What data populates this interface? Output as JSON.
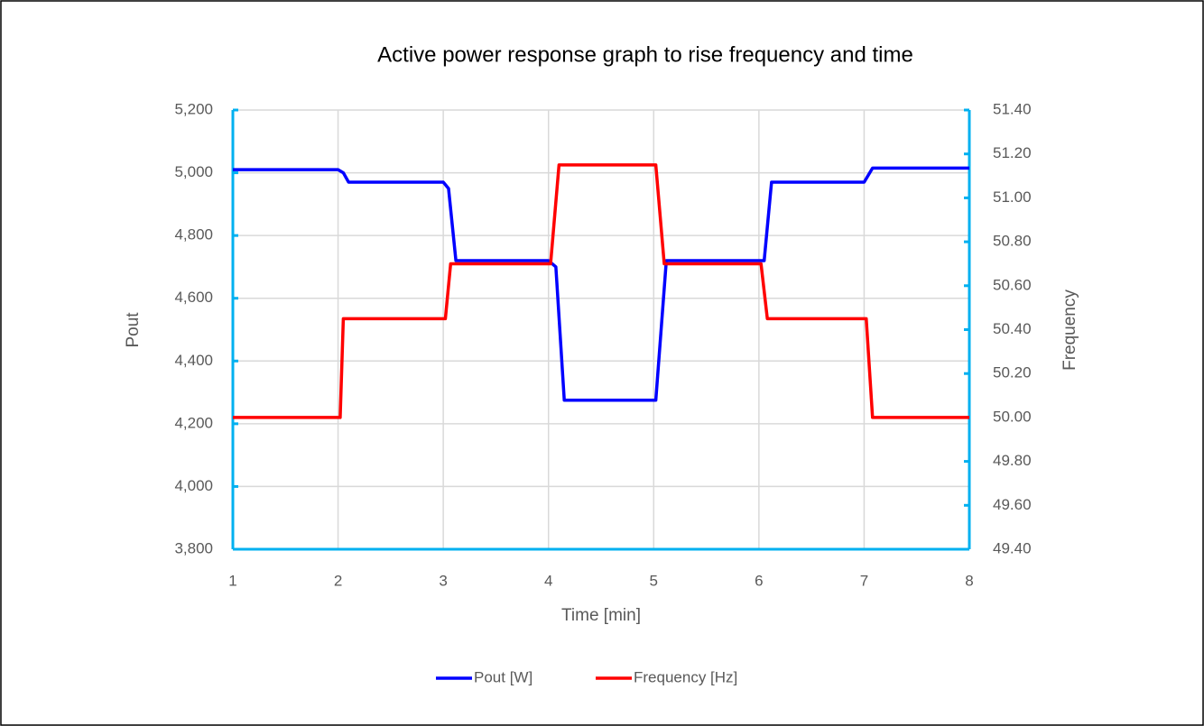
{
  "chart_data": {
    "type": "line",
    "title": "Active power response graph to rise frequency and time",
    "x_label": "Time [min]",
    "y_label": "Pout",
    "y2_label": "Frequency",
    "xlim": [
      1,
      8
    ],
    "xticks": [
      1,
      2,
      3,
      4,
      5,
      6,
      7,
      8
    ],
    "ylim": [
      3800,
      5200
    ],
    "yticks": [
      {
        "value": 3800,
        "label": "3,800"
      },
      {
        "value": 4000,
        "label": "4,000"
      },
      {
        "value": 4200,
        "label": "4,200"
      },
      {
        "value": 4400,
        "label": "4,400"
      },
      {
        "value": 4600,
        "label": "4,600"
      },
      {
        "value": 4800,
        "label": "4,800"
      },
      {
        "value": 5000,
        "label": "5,000"
      },
      {
        "value": 5200,
        "label": "5,200"
      }
    ],
    "y2lim": [
      49.4,
      51.4
    ],
    "y2ticks": [
      {
        "value": 49.4,
        "label": "49.40"
      },
      {
        "value": 49.6,
        "label": "49.60"
      },
      {
        "value": 49.8,
        "label": "49.80"
      },
      {
        "value": 50.0,
        "label": "50.00"
      },
      {
        "value": 50.2,
        "label": "50.20"
      },
      {
        "value": 50.4,
        "label": "50.40"
      },
      {
        "value": 50.6,
        "label": "50.60"
      },
      {
        "value": 50.8,
        "label": "50.80"
      },
      {
        "value": 51.0,
        "label": "51.00"
      },
      {
        "value": 51.2,
        "label": "51.20"
      },
      {
        "value": 51.4,
        "label": "51.40"
      }
    ],
    "grid": true,
    "axis_color": "#00b0f0",
    "legend": "bottom",
    "series": [
      {
        "name": "Pout [W]",
        "color": "#0000ff",
        "x": [
          1,
          2,
          2.05,
          2.1,
          3,
          3.05,
          3.12,
          4,
          4.07,
          4.15,
          5.02,
          5.12,
          6.05,
          6.12,
          7,
          7.08,
          8
        ],
        "values": [
          5010,
          5010,
          5000,
          4970,
          4970,
          4950,
          4720,
          4720,
          4700,
          4275,
          4275,
          4720,
          4720,
          4970,
          4970,
          5015,
          5015
        ]
      },
      {
        "name": "Frequency [Hz]",
        "color": "#ff0000",
        "axis": "y2",
        "x": [
          1,
          2.02,
          2.05,
          3.02,
          3.07,
          4.02,
          4.1,
          5.02,
          5.1,
          6.02,
          6.08,
          7.02,
          7.08,
          8
        ],
        "values": [
          50.0,
          50.0,
          50.45,
          50.45,
          50.7,
          50.7,
          51.15,
          51.15,
          50.7,
          50.7,
          50.45,
          50.45,
          50.0,
          50.0
        ]
      }
    ]
  }
}
